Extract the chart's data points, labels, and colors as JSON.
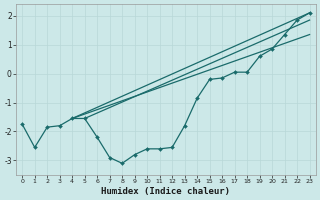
{
  "xlabel": "Humidex (Indice chaleur)",
  "background_color": "#cce8e8",
  "line_color": "#1a6b6b",
  "grid_color": "#b8d8d8",
  "xlim": [
    -0.5,
    23.5
  ],
  "ylim": [
    -3.5,
    2.4
  ],
  "yticks": [
    -3,
    -2,
    -1,
    0,
    1,
    2
  ],
  "xticks": [
    0,
    1,
    2,
    3,
    4,
    5,
    6,
    7,
    8,
    9,
    10,
    11,
    12,
    13,
    14,
    15,
    16,
    17,
    18,
    19,
    20,
    21,
    22,
    23
  ],
  "curve_x": [
    0,
    1,
    2,
    3,
    4,
    5,
    6,
    7,
    8,
    9,
    10,
    11,
    12,
    13,
    14,
    15,
    16,
    17,
    18,
    19,
    20,
    21,
    22,
    23
  ],
  "curve_y": [
    -1.75,
    -2.55,
    -1.85,
    -1.8,
    -1.55,
    -1.55,
    -2.2,
    -2.9,
    -3.1,
    -2.8,
    -2.6,
    -2.6,
    -2.55,
    -1.8,
    -0.85,
    -0.2,
    -0.15,
    0.05,
    0.05,
    0.6,
    0.85,
    1.35,
    1.85,
    2.1
  ],
  "line1_x": [
    4,
    23
  ],
  "line1_y": [
    -1.55,
    2.1
  ],
  "line2_x": [
    4,
    23
  ],
  "line2_y": [
    -1.55,
    1.35
  ],
  "line3_x": [
    5,
    23
  ],
  "line3_y": [
    -1.55,
    1.85
  ]
}
